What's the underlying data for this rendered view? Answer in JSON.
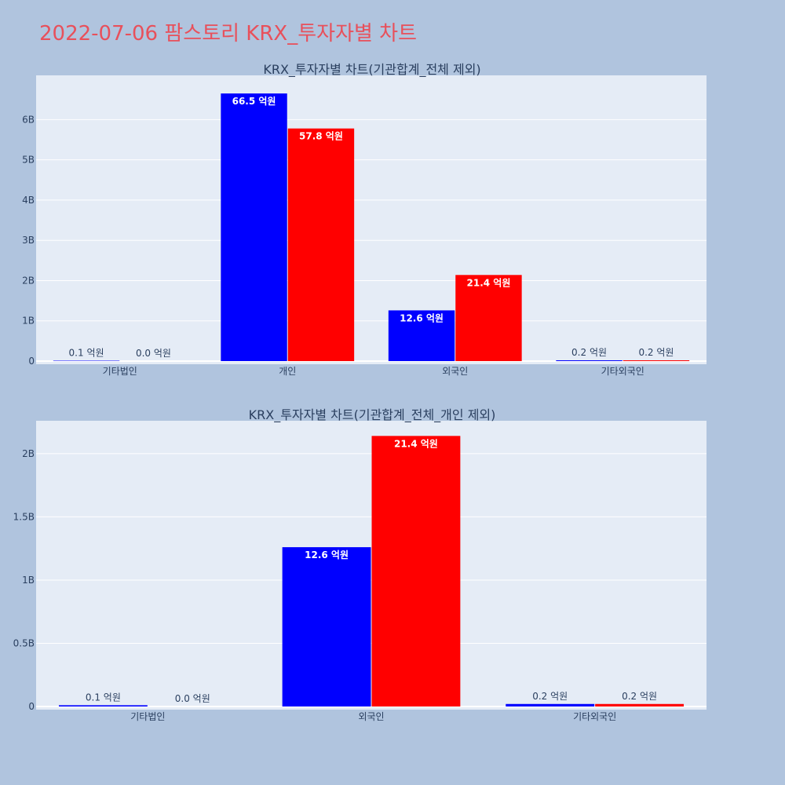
{
  "page": {
    "title": "2022-07-06 팜스토리 KRX_투자자별 차트",
    "title_color": "#e8505b",
    "background": "#b0c4de",
    "plot_background": "#e5ecf6"
  },
  "chart_data": [
    {
      "type": "bar",
      "title": "KRX_투자자별 차트(기관합계_전체 제외)",
      "categories": [
        "기타법인",
        "개인",
        "외국인",
        "기타외국인"
      ],
      "series": [
        {
          "color": "#0000ff",
          "values": [
            10000000,
            6650000000,
            1260000000,
            20000000
          ],
          "labels": [
            "0.1 억원",
            "66.5 억원",
            "12.6 억원",
            "0.2 억원"
          ]
        },
        {
          "color": "#ff0000",
          "values": [
            0,
            5780000000,
            2140000000,
            20000000
          ],
          "labels": [
            "0.0 억원",
            "57.8 억원",
            "21.4 억원",
            "0.2 억원"
          ]
        }
      ],
      "ylim": [
        0,
        7100000000
      ],
      "yticks": [
        {
          "value": 0,
          "label": "0"
        },
        {
          "value": 1000000000,
          "label": "1B"
        },
        {
          "value": 2000000000,
          "label": "2B"
        },
        {
          "value": 3000000000,
          "label": "3B"
        },
        {
          "value": 4000000000,
          "label": "4B"
        },
        {
          "value": 5000000000,
          "label": "5B"
        },
        {
          "value": 6000000000,
          "label": "6B"
        }
      ],
      "grid": true,
      "xlabel": "",
      "ylabel": ""
    },
    {
      "type": "bar",
      "title": "KRX_투자자별 차트(기관합계_전체_개인 제외)",
      "categories": [
        "기타법인",
        "외국인",
        "기타외국인"
      ],
      "series": [
        {
          "color": "#0000ff",
          "values": [
            10000000,
            1260000000,
            20000000
          ],
          "labels": [
            "0.1 억원",
            "12.6 억원",
            "0.2 억원"
          ]
        },
        {
          "color": "#ff0000",
          "values": [
            0,
            2140000000,
            20000000
          ],
          "labels": [
            "0.0 억원",
            "21.4 억원",
            "0.2 억원"
          ]
        }
      ],
      "ylim": [
        0,
        2260000000
      ],
      "yticks": [
        {
          "value": 0,
          "label": "0"
        },
        {
          "value": 500000000,
          "label": "0.5B"
        },
        {
          "value": 1000000000,
          "label": "1B"
        },
        {
          "value": 1500000000,
          "label": "1.5B"
        },
        {
          "value": 2000000000,
          "label": "2B"
        }
      ],
      "grid": true,
      "xlabel": "",
      "ylabel": ""
    }
  ]
}
